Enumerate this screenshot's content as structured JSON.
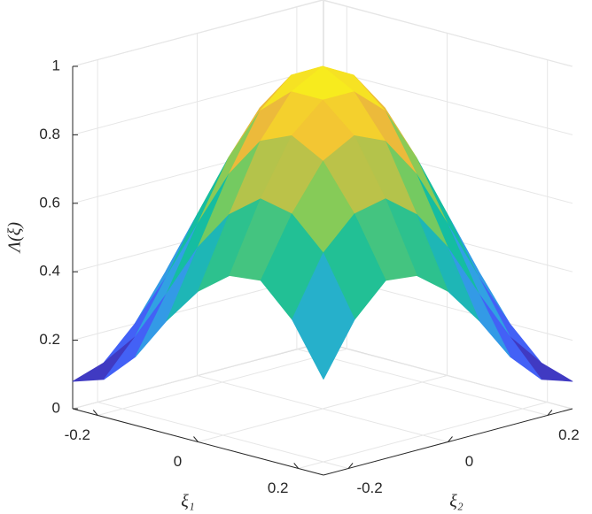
{
  "chart_data": {
    "type": "surface",
    "xlabel": "ξ₁",
    "ylabel": "ξ₂",
    "zlabel": "Λ(ξ)",
    "x": [
      -0.25,
      -0.1875,
      -0.125,
      -0.0625,
      0,
      0.0625,
      0.125,
      0.1875,
      0.25
    ],
    "y": [
      -0.25,
      -0.1875,
      -0.125,
      -0.0625,
      0,
      0.0625,
      0.125,
      0.1875,
      0.25
    ],
    "z": [
      [
        0.08,
        0.11,
        0.2,
        0.33,
        0.44,
        0.51,
        0.52,
        0.43,
        0.28
      ],
      [
        0.11,
        0.21,
        0.36,
        0.52,
        0.64,
        0.71,
        0.69,
        0.6,
        0.43
      ],
      [
        0.2,
        0.36,
        0.54,
        0.71,
        0.83,
        0.87,
        0.82,
        0.69,
        0.52
      ],
      [
        0.33,
        0.52,
        0.71,
        0.87,
        0.95,
        0.95,
        0.87,
        0.71,
        0.51
      ],
      [
        0.44,
        0.64,
        0.83,
        0.95,
        1,
        0.95,
        0.83,
        0.64,
        0.44
      ],
      [
        0.51,
        0.71,
        0.87,
        0.95,
        0.95,
        0.87,
        0.71,
        0.52,
        0.33
      ],
      [
        0.52,
        0.69,
        0.82,
        0.87,
        0.83,
        0.71,
        0.54,
        0.36,
        0.2
      ],
      [
        0.43,
        0.6,
        0.69,
        0.71,
        0.64,
        0.52,
        0.36,
        0.21,
        0.11
      ],
      [
        0.28,
        0.43,
        0.52,
        0.51,
        0.44,
        0.33,
        0.2,
        0.11,
        0.08
      ]
    ],
    "xlim": [
      -0.25,
      0.25
    ],
    "ylim": [
      -0.25,
      0.25
    ],
    "zlim": [
      0,
      1
    ],
    "xticks": [
      -0.2,
      0,
      0.2
    ],
    "yticks": [
      -0.2,
      0,
      0.2
    ],
    "zticks": [
      0,
      0.2,
      0.4,
      0.6,
      0.8,
      1
    ],
    "grid": true,
    "colormap": [
      "#3e26a8",
      "#4367fd",
      "#2ea9df",
      "#14be9e",
      "#81cc59",
      "#f1b93a",
      "#f9fb15"
    ]
  }
}
